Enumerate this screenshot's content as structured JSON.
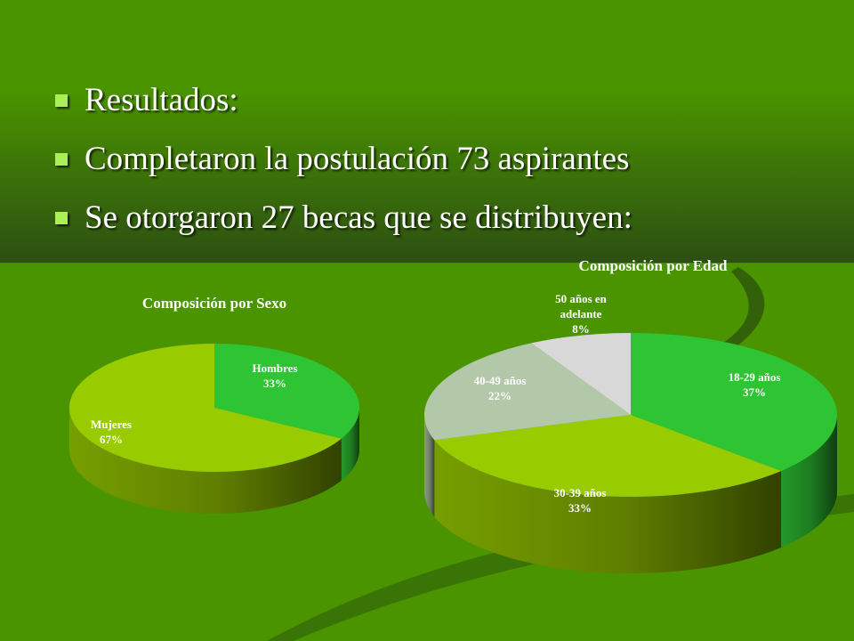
{
  "slide": {
    "bullets": [
      "Resultados:",
      "Completaron la postulación 73 aspirantes",
      "Se otorgaron 27 becas que se distribuyen:"
    ]
  },
  "colors": {
    "background": "#4a9400",
    "background_dark": "#2c4f12",
    "slice_green": "#2ec433",
    "slice_lime": "#99cc00",
    "slice_gray_green": "#b2c8a8",
    "slice_light_gray": "#d8d8d8",
    "text": "#ffffff"
  },
  "chart_data": [
    {
      "type": "pie",
      "title": "Composición por Sexo",
      "slices": [
        {
          "label_lines": [
            "Hombres",
            "33%"
          ],
          "name": "Hombres",
          "value": 33,
          "color": "#2ec433"
        },
        {
          "label_lines": [
            "Mujeres",
            "67%"
          ],
          "name": "Mujeres",
          "value": 67,
          "color": "#99cc00"
        }
      ]
    },
    {
      "type": "pie",
      "title": "Composición por Edad",
      "slices": [
        {
          "label_lines": [
            "18-29 años",
            "37%"
          ],
          "name": "18-29 años",
          "value": 37,
          "color": "#2ec433"
        },
        {
          "label_lines": [
            "30-39 años",
            "33%"
          ],
          "name": "30-39 años",
          "value": 33,
          "color": "#99cc00"
        },
        {
          "label_lines": [
            "40-49 años",
            "22%"
          ],
          "name": "40-49 años",
          "value": 22,
          "color": "#b2c8a8"
        },
        {
          "label_lines": [
            "50 años en",
            "adelante",
            "8%"
          ],
          "name": "50 años en adelante",
          "value": 8,
          "color": "#d8d8d8"
        }
      ]
    }
  ]
}
